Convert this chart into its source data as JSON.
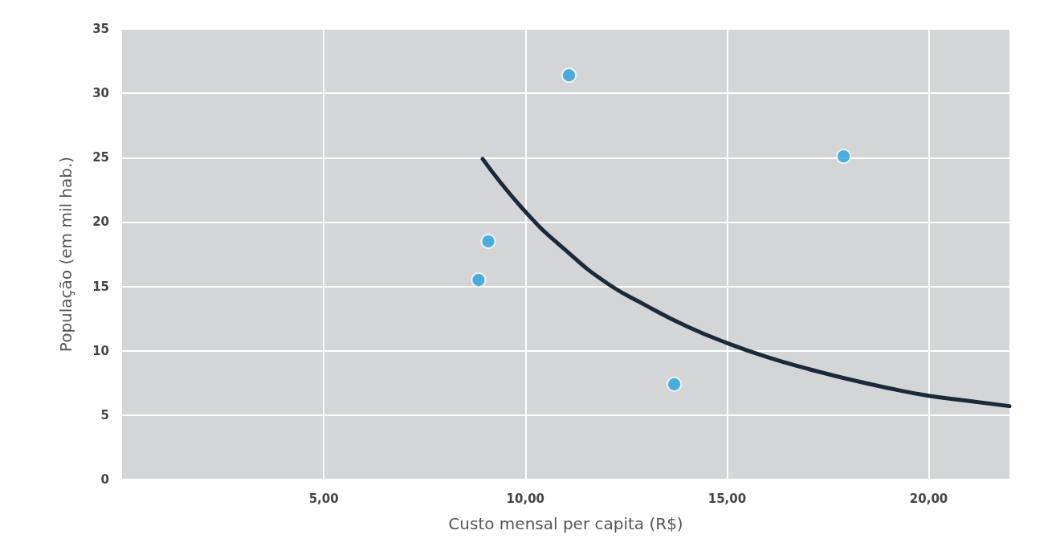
{
  "chart_data": {
    "type": "scatter",
    "xlabel": "Custo mensal per capita (R$)",
    "ylabel": "População (em mil hab.)",
    "xlim": [
      0,
      22
    ],
    "xticks": [
      {
        "value": 5,
        "label": "5,00"
      },
      {
        "value": 10,
        "label": "10,00"
      },
      {
        "value": 15,
        "label": "15,00"
      },
      {
        "value": 20,
        "label": "20,00"
      }
    ],
    "ylim": [
      0,
      35
    ],
    "yticks": [
      0,
      5,
      10,
      15,
      20,
      25,
      30,
      35
    ],
    "grid": true,
    "marker": "circle",
    "series": [
      {
        "color": "#29a3df",
        "x": [
          8.84,
          9.08,
          11.08,
          13.69,
          17.89
        ],
        "values": [
          15.5,
          18.5,
          31.4,
          7.4,
          25.1
        ]
      },
      {
        "type": "line",
        "color": "#1b2a3a",
        "marker": "none",
        "x": [
          8.94,
          10,
          11,
          12,
          13,
          14,
          15,
          16,
          17,
          18,
          19,
          20,
          21,
          22
        ],
        "values": [
          24.9,
          20.8,
          17.8,
          15.3,
          13.5,
          11.9,
          10.6,
          9.5,
          8.6,
          7.8,
          7.1,
          6.5,
          6.1,
          5.7
        ]
      }
    ]
  }
}
